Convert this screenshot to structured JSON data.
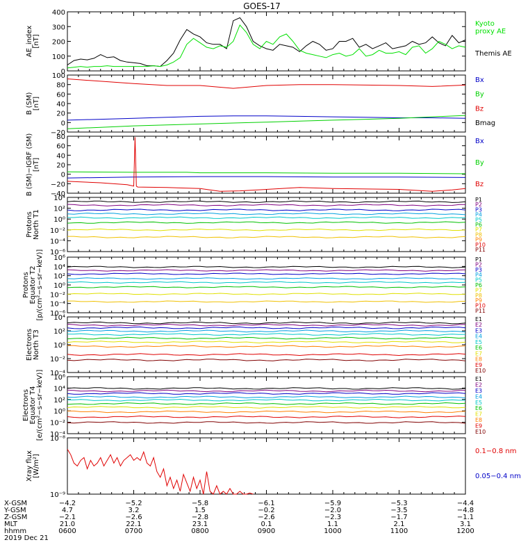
{
  "title": "GOES-17",
  "colors": {
    "black": "#000000",
    "red": "#e00000",
    "green": "#00d000",
    "blue": "#0000c8",
    "darkred": "#800000",
    "brightgreen": "#00e000"
  },
  "chart_data": [
    {
      "type": "line",
      "ylabel": [
        "AE_index",
        "[nT]"
      ],
      "yticks": [
        "400",
        "300",
        "200",
        "100",
        "0"
      ],
      "ylim": [
        0,
        400
      ],
      "legend": [
        {
          "label": "Kyoto",
          "color": "#00e000"
        },
        {
          "label": "proxy AE",
          "color": "#00e000"
        },
        {
          "label": "Themis AE",
          "color": "#000000"
        }
      ],
      "series": [
        {
          "name": "Themis AE",
          "color": "#000000",
          "x": [
            6.0,
            6.1,
            6.2,
            6.3,
            6.4,
            6.5,
            6.6,
            6.7,
            6.8,
            6.9,
            7.0,
            7.1,
            7.2,
            7.3,
            7.4,
            7.5,
            7.6,
            7.7,
            7.8,
            7.9,
            8.0,
            8.1,
            8.2,
            8.3,
            8.4,
            8.5,
            8.6,
            8.7,
            8.8,
            8.9,
            9.0,
            9.1,
            9.2,
            9.3,
            9.4,
            9.5,
            9.6,
            9.7,
            9.8,
            9.9,
            10.0,
            10.1,
            10.2,
            10.3,
            10.4,
            10.5,
            10.6,
            10.7,
            10.8,
            10.9,
            11.0,
            11.1,
            11.2,
            11.3,
            11.4,
            11.5,
            11.6,
            11.7,
            11.8,
            11.9,
            12.0
          ],
          "y": [
            40,
            70,
            80,
            75,
            85,
            110,
            90,
            95,
            70,
            60,
            55,
            50,
            35,
            35,
            30,
            70,
            120,
            210,
            280,
            250,
            230,
            190,
            180,
            180,
            150,
            340,
            360,
            300,
            200,
            170,
            150,
            140,
            180,
            170,
            160,
            130,
            170,
            200,
            180,
            140,
            150,
            200,
            200,
            220,
            160,
            180,
            150,
            170,
            190,
            150,
            160,
            170,
            200,
            180,
            190,
            230,
            190,
            170,
            240,
            190,
            210
          ]
        },
        {
          "name": "Kyoto proxy AE",
          "color": "#00e000",
          "x": [
            6.0,
            6.1,
            6.2,
            6.3,
            6.4,
            6.5,
            6.6,
            6.7,
            6.8,
            6.9,
            7.0,
            7.1,
            7.2,
            7.3,
            7.4,
            7.5,
            7.6,
            7.7,
            7.8,
            7.9,
            8.0,
            8.1,
            8.2,
            8.3,
            8.4,
            8.5,
            8.6,
            8.7,
            8.8,
            8.9,
            9.0,
            9.1,
            9.2,
            9.3,
            9.4,
            9.5,
            9.6,
            9.7,
            9.8,
            9.9,
            10.0,
            10.1,
            10.2,
            10.3,
            10.4,
            10.5,
            10.6,
            10.7,
            10.8,
            10.9,
            11.0,
            11.1,
            11.2,
            11.3,
            11.4,
            11.5,
            11.6,
            11.7,
            11.8,
            11.9,
            12.0
          ],
          "y": [
            20,
            25,
            30,
            25,
            30,
            30,
            35,
            30,
            30,
            30,
            30,
            30,
            30,
            35,
            30,
            40,
            60,
            90,
            180,
            220,
            190,
            160,
            150,
            170,
            160,
            200,
            310,
            260,
            180,
            150,
            200,
            180,
            230,
            250,
            200,
            140,
            120,
            110,
            100,
            90,
            110,
            120,
            100,
            110,
            150,
            100,
            110,
            140,
            120,
            120,
            130,
            110,
            160,
            170,
            120,
            150,
            200,
            180,
            150,
            170,
            160
          ]
        }
      ]
    },
    {
      "type": "line",
      "ylabel": [
        "B (SM)",
        "[nT]"
      ],
      "yticks": [
        "100",
        "80",
        "60",
        "40",
        "20",
        "0",
        "−20"
      ],
      "ylim": [
        -20,
        100
      ],
      "legend": [
        {
          "label": "Bx",
          "color": "#0000c8"
        },
        {
          "label": "By",
          "color": "#00d000"
        },
        {
          "label": "Bz",
          "color": "#e00000"
        },
        {
          "label": "Bmag",
          "color": "#000000"
        }
      ],
      "series": [
        {
          "name": "Bz",
          "color": "#e00000",
          "x": [
            6.0,
            6.5,
            7.0,
            7.5,
            8.0,
            8.5,
            9.0,
            9.5,
            10.0,
            10.5,
            11.0,
            11.5,
            12.0
          ],
          "y": [
            92,
            87,
            82,
            78,
            78,
            72,
            78,
            80,
            80,
            79,
            78,
            76,
            79
          ]
        },
        {
          "name": "Bx",
          "color": "#0000c8",
          "x": [
            6.0,
            6.5,
            7.0,
            7.5,
            8.0,
            8.5,
            9.0,
            9.5,
            10.0,
            10.5,
            11.0,
            11.5,
            12.0
          ],
          "y": [
            5,
            7,
            9,
            11,
            13,
            14,
            14,
            13,
            12,
            11,
            10,
            10,
            9
          ]
        },
        {
          "name": "By",
          "color": "#00d000",
          "x": [
            6.0,
            6.5,
            7.0,
            7.5,
            8.0,
            8.5,
            9.0,
            9.5,
            10.0,
            10.5,
            11.0,
            11.5,
            12.0
          ],
          "y": [
            -13,
            -10,
            -7,
            -5,
            -3,
            -1,
            1,
            3,
            5,
            7,
            9,
            12,
            15
          ]
        }
      ]
    },
    {
      "type": "line",
      "ylabel": [
        "B (SM)−IGRF (SM)",
        "[nT]"
      ],
      "yticks": [
        "80",
        "60",
        "40",
        "20",
        "0",
        "−20",
        "−40"
      ],
      "ylim": [
        -40,
        80
      ],
      "legend": [
        {
          "label": "Bx",
          "color": "#0000c8"
        },
        {
          "label": "By",
          "color": "#00d000"
        },
        {
          "label": "Bz",
          "color": "#e00000"
        }
      ],
      "series": [
        {
          "name": "By",
          "color": "#00d000",
          "x": [
            6.0,
            7.0,
            7.8,
            8.0,
            9.0,
            10.0,
            11.0,
            12.0
          ],
          "y": [
            5,
            4,
            4,
            3,
            3,
            2,
            2,
            1
          ]
        },
        {
          "name": "Bx",
          "color": "#0000c8",
          "x": [
            6.0,
            7.0,
            8.0,
            9.0,
            10.0,
            11.0,
            12.0
          ],
          "y": [
            -8,
            -6,
            -5,
            -5,
            -6,
            -6,
            -7
          ]
        },
        {
          "name": "Bz",
          "color": "#e00000",
          "x": [
            6.0,
            6.5,
            6.9,
            7.0,
            7.02,
            7.04,
            7.06,
            7.5,
            8.0,
            8.3,
            8.6,
            9.0,
            9.5,
            10.0,
            10.5,
            11.0,
            11.5,
            11.8,
            12.0
          ],
          "y": [
            -15,
            -18,
            -22,
            -25,
            78,
            -25,
            -27,
            -28,
            -30,
            -36,
            -35,
            -32,
            -28,
            -30,
            -31,
            -32,
            -36,
            -33,
            -30
          ]
        }
      ]
    },
    {
      "type": "line",
      "ylabel": [
        "Protons",
        "North T1"
      ],
      "yticks": [
        "10⁴",
        "10²",
        "10⁰",
        "10⁻²",
        "10⁻⁴",
        "10⁻⁶"
      ],
      "ylog": true,
      "ylim": [
        -6.6,
        4.6
      ],
      "legend": [
        {
          "label": "P1",
          "color": "#000000"
        },
        {
          "label": "P2",
          "color": "#800080"
        },
        {
          "label": "P3",
          "color": "#0000c8"
        },
        {
          "label": "P4",
          "color": "#00a0e0"
        },
        {
          "label": "P5",
          "color": "#00c8c8"
        },
        {
          "label": "P6",
          "color": "#00c000"
        },
        {
          "label": "P7",
          "color": "#e0e000"
        },
        {
          "label": "P8",
          "color": "#f0c000"
        },
        {
          "label": "P9",
          "color": "#ff8000"
        },
        {
          "label": "P10",
          "color": "#e00000"
        },
        {
          "label": "P11",
          "color": "#800000"
        }
      ],
      "levels_log10": [
        3.7,
        3.0,
        2.0,
        1.2,
        0.4,
        -0.6,
        -2.1,
        -3.6
      ],
      "level_colors": [
        "#000000",
        "#800080",
        "#0000c8",
        "#00a0e0",
        "#00c8c8",
        "#00c000",
        "#e0e000",
        "#f0c000"
      ]
    },
    {
      "type": "line",
      "ylabel": [
        "Protons",
        "Equator T2",
        "[p/(cm²−s−sr−keV)]"
      ],
      "yticks": [
        "10⁶",
        "10⁴",
        "10²",
        "10⁰",
        "10⁻²",
        "10⁻⁴",
        "10⁻⁶"
      ],
      "ylog": true,
      "ylim": [
        -6.6,
        6.4
      ],
      "legend": [
        {
          "label": "P1",
          "color": "#000000"
        },
        {
          "label": "P2",
          "color": "#800080"
        },
        {
          "label": "P3",
          "color": "#0000c8"
        },
        {
          "label": "P4",
          "color": "#00a0e0"
        },
        {
          "label": "P5",
          "color": "#00c8c8"
        },
        {
          "label": "P6",
          "color": "#00c000"
        },
        {
          "label": "P7",
          "color": "#e0e000"
        },
        {
          "label": "P8",
          "color": "#f0c000"
        },
        {
          "label": "P9",
          "color": "#ff8000"
        },
        {
          "label": "P10",
          "color": "#e00000"
        },
        {
          "label": "P11",
          "color": "#800000"
        }
      ],
      "levels_log10": [
        4.1,
        3.3,
        2.5,
        1.4,
        0.5,
        -0.6,
        -2.2,
        -4.0
      ],
      "level_colors": [
        "#000000",
        "#800080",
        "#0000c8",
        "#00a0e0",
        "#00c8c8",
        "#00c000",
        "#e0e000",
        "#f0c000"
      ]
    },
    {
      "type": "line",
      "ylabel": [
        "Electrons",
        "North T3"
      ],
      "yticks": [
        "10⁴",
        "10²",
        "10⁰",
        "10⁻²",
        "10⁻⁴"
      ],
      "ylog": true,
      "ylim": [
        -4.6,
        5.6
      ],
      "legend": [
        {
          "label": "E1",
          "color": "#000000"
        },
        {
          "label": "E2",
          "color": "#800080"
        },
        {
          "label": "E3",
          "color": "#0000c8"
        },
        {
          "label": "E4",
          "color": "#00a0e0"
        },
        {
          "label": "E5",
          "color": "#00c8c8"
        },
        {
          "label": "E6",
          "color": "#00c000"
        },
        {
          "label": "E7",
          "color": "#e0e000"
        },
        {
          "label": "E8",
          "color": "#ff8000"
        },
        {
          "label": "E9",
          "color": "#e00000"
        },
        {
          "label": "E10",
          "color": "#800000"
        }
      ],
      "levels_log10": [
        4.5,
        4.1,
        3.6,
        3.0,
        2.4,
        1.7,
        1.0,
        0.2,
        -1.3,
        -2.3
      ],
      "level_colors": [
        "#000000",
        "#800080",
        "#0000c8",
        "#00a0e0",
        "#00c8c8",
        "#00c000",
        "#e0e000",
        "#ff8000",
        "#e00000",
        "#800000"
      ]
    },
    {
      "type": "line",
      "ylabel": [
        "Electrons",
        "Equator T4",
        "[e/(cm²−s−sr−keV)]"
      ],
      "yticks": [
        "10⁶",
        "10⁴",
        "10²",
        "10⁰",
        "10⁻²",
        "10⁻⁴"
      ],
      "ylog": true,
      "ylim": [
        -4.6,
        6.6
      ],
      "legend": [
        {
          "label": "E1",
          "color": "#000000"
        },
        {
          "label": "E2",
          "color": "#800080"
        },
        {
          "label": "E3",
          "color": "#0000c8"
        },
        {
          "label": "E4",
          "color": "#00a0e0"
        },
        {
          "label": "E5",
          "color": "#00c8c8"
        },
        {
          "label": "E6",
          "color": "#00c000"
        },
        {
          "label": "E7",
          "color": "#e0e000"
        },
        {
          "label": "E8",
          "color": "#ff8000"
        },
        {
          "label": "E9",
          "color": "#e00000"
        },
        {
          "label": "E10",
          "color": "#800000"
        }
      ],
      "levels_log10": [
        4.3,
        3.8,
        3.3,
        2.6,
        2.0,
        1.3,
        0.6,
        -0.3,
        -1.3,
        -2.4
      ],
      "level_colors": [
        "#000000",
        "#800080",
        "#0000c8",
        "#00a0e0",
        "#00c8c8",
        "#00c000",
        "#e0e000",
        "#ff8000",
        "#e00000",
        "#800000"
      ]
    },
    {
      "type": "line",
      "ylabel": [
        "Xray flux",
        "[W/m²]"
      ],
      "yticks": [
        "10⁻⁸",
        "10⁻⁹"
      ],
      "ylog": true,
      "ylim": [
        -9.0,
        -8.0
      ],
      "legend": [
        {
          "label": "0.1−0.8 nm",
          "color": "#e00000"
        },
        {
          "label": "0.05−0.4 nm",
          "color": "#0000c8"
        }
      ],
      "series": [
        {
          "name": "0.1−0.8 nm",
          "color": "#e00000",
          "x": [
            6.0,
            6.05,
            6.1,
            6.15,
            6.2,
            6.25,
            6.3,
            6.35,
            6.4,
            6.45,
            6.5,
            6.55,
            6.6,
            6.65,
            6.7,
            6.75,
            6.8,
            6.85,
            6.9,
            6.95,
            7.0,
            7.05,
            7.1,
            7.15,
            7.2,
            7.25,
            7.3,
            7.35,
            7.4,
            7.45,
            7.5,
            7.55,
            7.6,
            7.65,
            7.7,
            7.75,
            7.8,
            7.85,
            7.9,
            7.95,
            8.0,
            8.05,
            8.1,
            8.15,
            8.2,
            8.25,
            8.3,
            8.35,
            8.4,
            8.45,
            8.5,
            8.55,
            8.6,
            8.65,
            8.7,
            8.75,
            8.8
          ],
          "y": [
            -8.2,
            -8.3,
            -8.45,
            -8.5,
            -8.4,
            -8.35,
            -8.55,
            -8.4,
            -8.5,
            -8.45,
            -8.35,
            -8.5,
            -8.4,
            -8.3,
            -8.45,
            -8.35,
            -8.5,
            -8.4,
            -8.35,
            -8.3,
            -8.4,
            -8.35,
            -8.4,
            -8.25,
            -8.45,
            -8.5,
            -8.35,
            -8.6,
            -8.7,
            -8.55,
            -8.85,
            -8.7,
            -8.9,
            -8.75,
            -8.95,
            -8.65,
            -8.8,
            -8.95,
            -8.7,
            -8.9,
            -8.75,
            -9.0,
            -8.6,
            -8.95,
            -9.0,
            -8.85,
            -9.0,
            -8.95,
            -9.0,
            -8.9,
            -9.0,
            -9.0,
            -8.95,
            -9.0,
            -9.0,
            -8.98,
            -9.0
          ]
        }
      ]
    }
  ],
  "orbit": {
    "row_labels": [
      "X-GSM",
      "Y-GSM",
      "Z-GSM",
      "MLT",
      "hhmm",
      "2019 Dec 21"
    ],
    "columns": [
      [
        "−4.2",
        "4.7",
        "−2.1",
        "21.0",
        "0600"
      ],
      [
        "−5.2",
        "3.2",
        "−2.6",
        "22.1",
        "0700"
      ],
      [
        "−5.8",
        "1.5",
        "−2.8",
        "23.1",
        "0800"
      ],
      [
        "−6.1",
        "−0.2",
        "−2.6",
        "0.1",
        "0900"
      ],
      [
        "−5.9",
        "−2.0",
        "−2.3",
        "1.1",
        "1000"
      ],
      [
        "−5.3",
        "−3.5",
        "−1.7",
        "2.1",
        "1100"
      ],
      [
        "−4.4",
        "−4.8",
        "−1.1",
        "3.1",
        "1200"
      ]
    ]
  }
}
